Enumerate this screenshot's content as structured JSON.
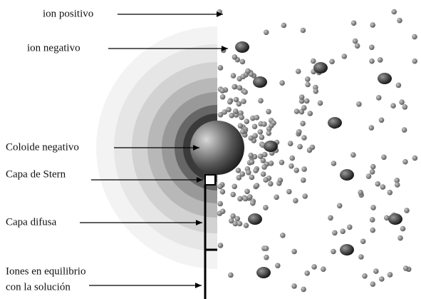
{
  "labels": [
    "ion positivo",
    "ion negativo",
    "Coloide negativo",
    "Capa de Stern",
    "Capa difusa",
    "Iones en equilibrio",
    "con la solución"
  ]
}
